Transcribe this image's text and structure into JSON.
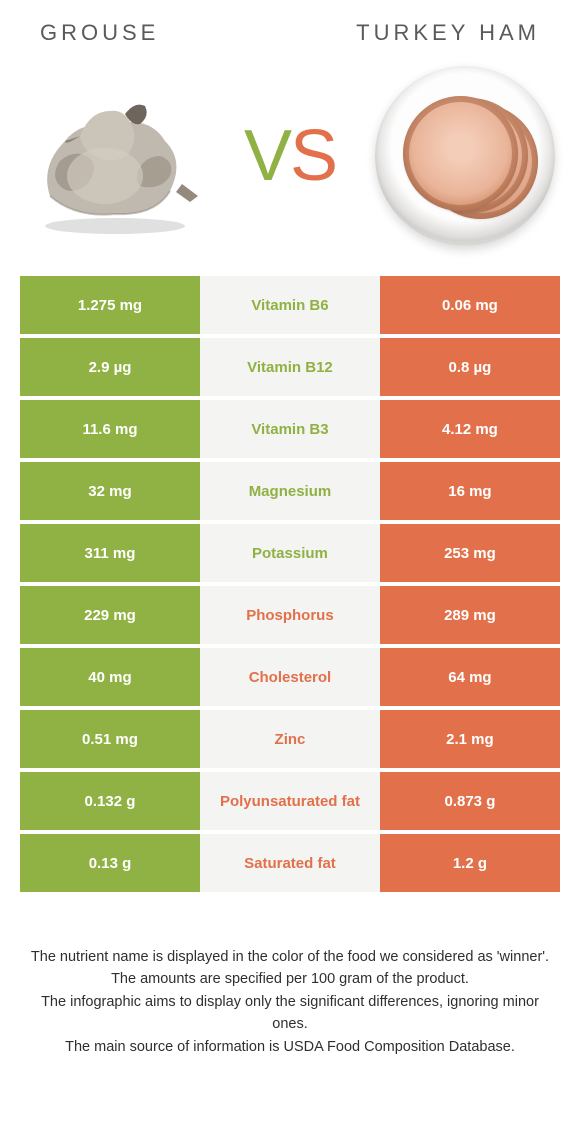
{
  "colors": {
    "left": "#90b143",
    "right": "#e2714b",
    "mid_bg": "#f4f4f2",
    "text_on_color": "#ffffff",
    "header_text": "#5a5a5a",
    "footer_text": "#2f2f2f"
  },
  "header": {
    "left_title": "GROUSE",
    "right_title": "TURKEY HAM"
  },
  "vs": {
    "v": "V",
    "s": "S"
  },
  "rows": [
    {
      "left": "1.275 mg",
      "label": "Vitamin B6",
      "right": "0.06 mg",
      "winner": "left"
    },
    {
      "left": "2.9 µg",
      "label": "Vitamin B12",
      "right": "0.8 µg",
      "winner": "left"
    },
    {
      "left": "11.6 mg",
      "label": "Vitamin B3",
      "right": "4.12 mg",
      "winner": "left"
    },
    {
      "left": "32 mg",
      "label": "Magnesium",
      "right": "16 mg",
      "winner": "left"
    },
    {
      "left": "311 mg",
      "label": "Potassium",
      "right": "253 mg",
      "winner": "left"
    },
    {
      "left": "229 mg",
      "label": "Phosphorus",
      "right": "289 mg",
      "winner": "right"
    },
    {
      "left": "40 mg",
      "label": "Cholesterol",
      "right": "64 mg",
      "winner": "right"
    },
    {
      "left": "0.51 mg",
      "label": "Zinc",
      "right": "2.1 mg",
      "winner": "right"
    },
    {
      "left": "0.132 g",
      "label": "Polyunsaturated fat",
      "right": "0.873 g",
      "winner": "right"
    },
    {
      "left": "0.13 g",
      "label": "Saturated fat",
      "right": "1.2 g",
      "winner": "right"
    }
  ],
  "footer": {
    "l1": "The nutrient name is displayed in the color of the food we considered as 'winner'.",
    "l2": "The amounts are specified per 100 gram of the product.",
    "l3": "The infographic aims to display only the significant differences, ignoring minor ones.",
    "l4": "The main source of information is USDA Food Composition Database."
  }
}
